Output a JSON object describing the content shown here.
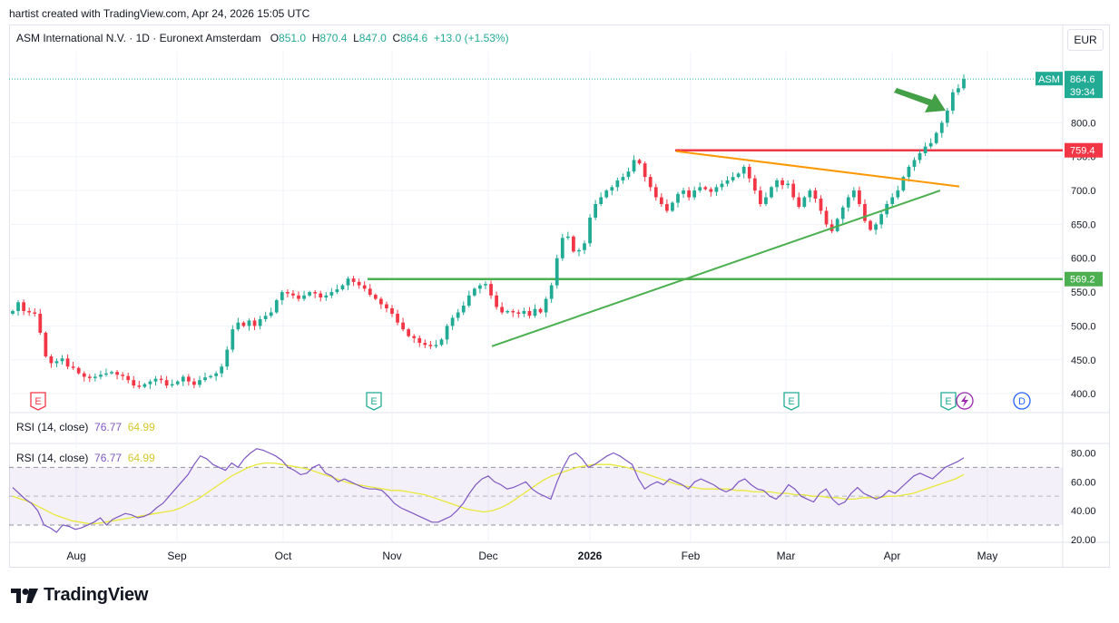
{
  "header": {
    "created_by": "hartist created with TradingView.com, Apr 24, 2026 15:05 UTC"
  },
  "symbol": {
    "name": "ASM International N.V. · 1D · Euronext Amsterdam",
    "o_label": "O",
    "o": "851.0",
    "h_label": "H",
    "h": "870.4",
    "l_label": "L",
    "l": "847.0",
    "c_label": "C",
    "c": "864.6",
    "change": "+13.0 (+1.53%)"
  },
  "currency": "EUR",
  "price_tag": {
    "ticker": "ASM",
    "price": "864.6",
    "countdown": "39:34"
  },
  "levels": {
    "resistance": "759.4",
    "support": "569.2"
  },
  "rsi": {
    "label": "RSI (14, close)",
    "value": "76.77",
    "ma": "64.99"
  },
  "brand": "TradingView",
  "colors": {
    "up": "#22ab94",
    "down": "#f23645",
    "rsi": "#7e57c2",
    "rsi_ma": "#e8e83a",
    "support": "#4caf50",
    "resistance": "#f23645",
    "wedge": "#ff9800"
  },
  "chart_data": [
    {
      "type": "candlestick",
      "title": "",
      "x_ticks": [
        "Aug",
        "Sep",
        "Oct",
        "Nov",
        "Dec",
        "2026",
        "Feb",
        "Mar",
        "Apr",
        "May"
      ],
      "y_ticks": [
        400.0,
        450.0,
        500.0,
        550.0,
        600.0,
        650.0,
        700.0,
        750.0,
        800.0
      ],
      "y_tick_labels": [
        "400.0",
        "450.0",
        "500.0",
        "550.0",
        "600.0",
        "650.0",
        "700.0",
        "750.0",
        "800.0"
      ],
      "ylim": [
        372,
        905
      ],
      "last_price": 864.6,
      "horizontal_levels": [
        759.4,
        569.2
      ],
      "trendlines": [
        {
          "name": "rising support",
          "from": [
            "Dec",
            470
          ],
          "to": [
            "Apr",
            700
          ]
        },
        {
          "name": "falling resistance",
          "from": [
            "Feb",
            758
          ],
          "to": [
            "Apr",
            706
          ]
        }
      ],
      "earnings_markers": [
        "E",
        "E",
        "E",
        "E"
      ],
      "dividend_marker": "D",
      "closes": [
        522,
        535,
        522,
        520,
        518,
        490,
        455,
        445,
        448,
        452,
        440,
        438,
        430,
        425,
        423,
        425,
        428,
        430,
        432,
        428,
        426,
        420,
        412,
        410,
        414,
        418,
        422,
        420,
        412,
        414,
        418,
        425,
        418,
        413,
        420,
        424,
        426,
        430,
        440,
        465,
        495,
        505,
        500,
        508,
        500,
        510,
        515,
        520,
        538,
        550,
        548,
        545,
        540,
        545,
        550,
        548,
        542,
        545,
        550,
        554,
        560,
        570,
        565,
        560,
        555,
        546,
        540,
        532,
        526,
        518,
        505,
        495,
        485,
        482,
        475,
        472,
        470,
        472,
        480,
        500,
        512,
        520,
        530,
        545,
        555,
        560,
        562,
        545,
        528,
        520,
        522,
        520,
        518,
        522,
        515,
        525,
        520,
        540,
        560,
        600,
        630,
        632,
        610,
        612,
        622,
        660,
        680,
        690,
        700,
        705,
        715,
        720,
        728,
        745,
        740,
        720,
        705,
        690,
        680,
        670,
        682,
        695,
        700,
        690,
        700,
        705,
        702,
        698,
        705,
        710,
        715,
        720,
        725,
        735,
        718,
        700,
        680,
        690,
        705,
        715,
        708,
        710,
        690,
        676,
        690,
        700,
        688,
        670,
        650,
        640,
        658,
        675,
        690,
        700,
        680,
        655,
        642,
        650,
        665,
        680,
        690,
        700,
        720,
        735,
        745,
        755,
        765,
        770,
        785,
        800,
        818,
        845,
        851,
        864.6
      ]
    },
    {
      "type": "line",
      "title": "",
      "y_ticks": [
        20.0,
        40.0,
        60.0,
        80.0
      ],
      "y_tick_labels": [
        "20.00",
        "40.00",
        "60.00",
        "80.00"
      ],
      "ylim": [
        18,
        86
      ],
      "overbought": 70,
      "oversold": 30,
      "mid": 50,
      "series": [
        {
          "name": "RSI",
          "values": [
            56,
            52,
            48,
            45,
            40,
            30,
            28,
            25,
            30,
            29,
            27,
            28,
            30,
            32,
            35,
            30,
            34,
            36,
            38,
            37,
            35,
            36,
            38,
            42,
            45,
            50,
            55,
            60,
            65,
            72,
            78,
            76,
            72,
            70,
            68,
            73,
            70,
            76,
            80,
            83,
            82,
            80,
            78,
            75,
            70,
            68,
            65,
            66,
            70,
            72,
            66,
            64,
            60,
            62,
            60,
            58,
            56,
            55,
            55,
            54,
            50,
            45,
            42,
            40,
            38,
            36,
            34,
            32,
            32,
            34,
            36,
            40,
            45,
            52,
            58,
            62,
            64,
            60,
            58,
            55,
            56,
            58,
            60,
            55,
            52,
            50,
            48,
            60,
            70,
            78,
            80,
            76,
            70,
            72,
            75,
            78,
            80,
            78,
            75,
            72,
            62,
            55,
            58,
            60,
            58,
            62,
            60,
            58,
            55,
            60,
            62,
            60,
            58,
            55,
            53,
            55,
            60,
            62,
            58,
            55,
            54,
            50,
            48,
            52,
            58,
            55,
            50,
            48,
            46,
            52,
            55,
            48,
            44,
            46,
            52,
            56,
            52,
            50,
            48,
            50,
            54,
            52,
            56,
            60,
            64,
            66,
            64,
            62,
            66,
            70,
            72,
            74,
            76.77
          ]
        },
        {
          "name": "RSI MA",
          "values": [
            50,
            48,
            46,
            43,
            40,
            37,
            35,
            33,
            32,
            31,
            31,
            32,
            33,
            34,
            35,
            36,
            37,
            38,
            39,
            40,
            42,
            45,
            48,
            52,
            56,
            60,
            64,
            67,
            70,
            72,
            73,
            73,
            72,
            71,
            70,
            69,
            67,
            65,
            63,
            61,
            59,
            58,
            57,
            56,
            55,
            54,
            54,
            53,
            52,
            51,
            49,
            47,
            45,
            43,
            41,
            40,
            39,
            40,
            42,
            45,
            49,
            53,
            57,
            61,
            64,
            66,
            68,
            70,
            71,
            72,
            72,
            72,
            71,
            70,
            68,
            66,
            64,
            62,
            60,
            58,
            57,
            56,
            55,
            55,
            55,
            55,
            54,
            54,
            53,
            53,
            53,
            52,
            52,
            51,
            51,
            50,
            50,
            49,
            49,
            48,
            48,
            49,
            49,
            49,
            50,
            50,
            51,
            52,
            54,
            56,
            58,
            60,
            62,
            64.99
          ]
        }
      ]
    }
  ]
}
